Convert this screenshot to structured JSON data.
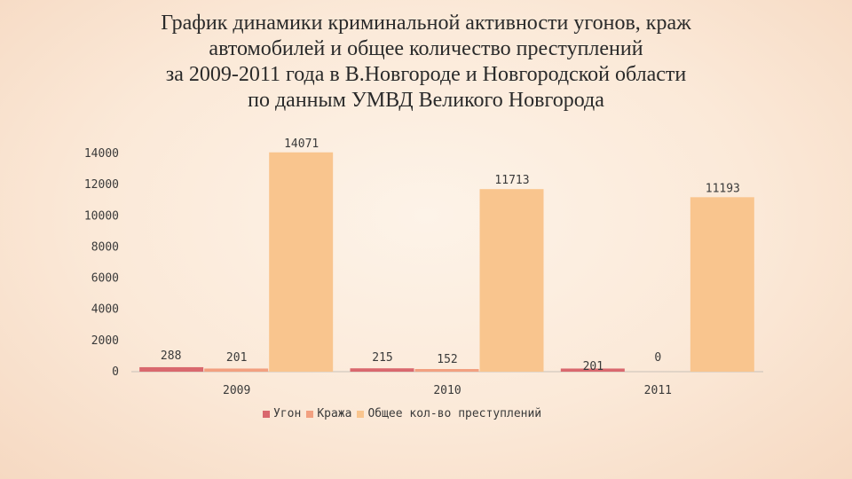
{
  "title_lines": [
    "График динамики криминальной активности угонов, краж",
    "автомобилей и общее количество преступлений",
    "за 2009-2011 года в В.Новгороде и Новгородской области",
    "по данным УМВД Великого Новгорода"
  ],
  "colors": {
    "ugon": "#d9686e",
    "krazha": "#f2a080",
    "total": "#f9c58e",
    "axis": "#c8c0b8"
  },
  "chart_data": {
    "type": "bar",
    "title": "График динамики криминальной активности угонов, краж автомобилей и общее количество преступлений за 2009-2011 года в В.Новгороде и Новгородской области по данным УМВД Великого Новгорода",
    "categories": [
      "2009",
      "2010",
      "2011"
    ],
    "series": [
      {
        "name": "Угон",
        "values": [
          288,
          215,
          201
        ]
      },
      {
        "name": "Кража",
        "values": [
          201,
          152,
          0
        ]
      },
      {
        "name": "Общее кол-во преступлений",
        "values": [
          14071,
          11713,
          11193
        ]
      }
    ],
    "y_ticks": [
      "0",
      "2000",
      "4000",
      "6000",
      "8000",
      "10000",
      "12000",
      "14000"
    ],
    "ylim": [
      0,
      14000
    ],
    "grid": false,
    "legend_position": "bottom",
    "xlabel": "",
    "ylabel": ""
  }
}
